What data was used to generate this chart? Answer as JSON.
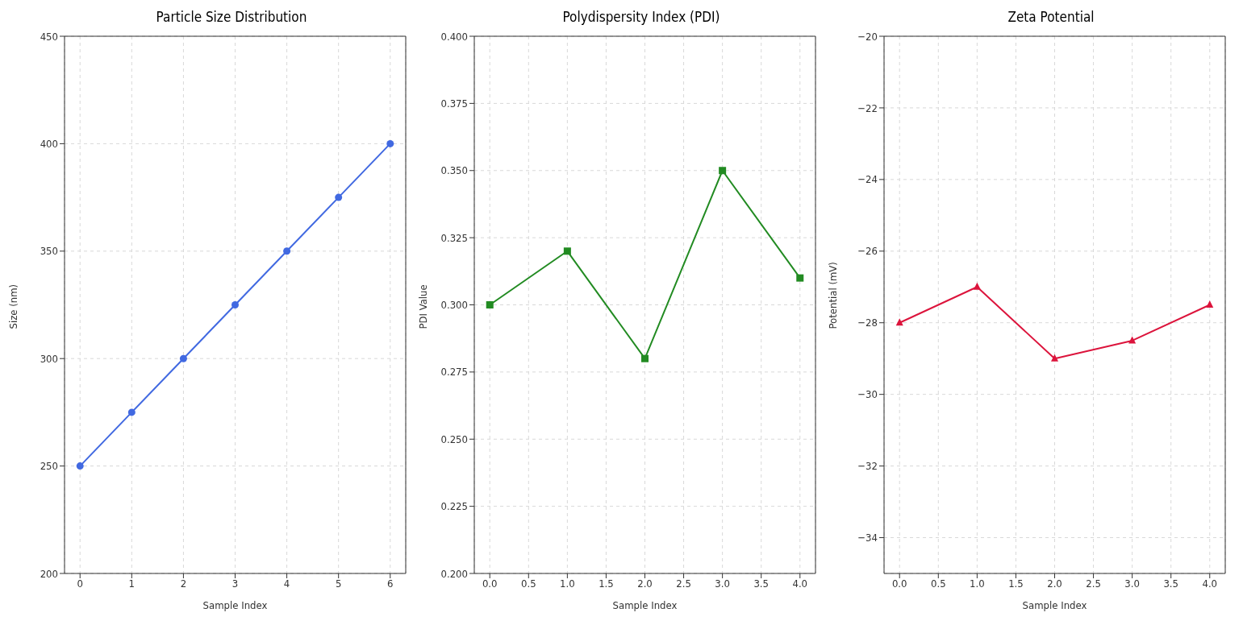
{
  "chart_data": [
    {
      "type": "line",
      "title": "Particle Size Distribution",
      "xlabel": "Sample Index",
      "ylabel": "Size (nm)",
      "x": [
        0,
        1,
        2,
        3,
        4,
        5,
        6
      ],
      "values": [
        250,
        275,
        300,
        325,
        350,
        375,
        400
      ],
      "color": "#4169e1",
      "marker": "circle",
      "xlim": [
        -0.3,
        6.3
      ],
      "xticks": [
        0,
        1,
        2,
        3,
        4,
        5,
        6
      ],
      "ylim": [
        200,
        450
      ],
      "yticks": [
        200,
        250,
        300,
        350,
        400,
        450
      ],
      "grid": true
    },
    {
      "type": "line",
      "title": "Polydispersity Index (PDI)",
      "xlabel": "Sample Index",
      "ylabel": "PDI Value",
      "x": [
        0,
        1,
        2,
        3,
        4
      ],
      "values": [
        0.3,
        0.32,
        0.28,
        0.35,
        0.31
      ],
      "color": "#228b22",
      "marker": "square",
      "xlim": [
        -0.2,
        4.2
      ],
      "xticks": [
        {
          "value": 0,
          "label": "0.0"
        },
        {
          "value": 0.5,
          "label": "0.5"
        },
        {
          "value": 1,
          "label": "1.0"
        },
        {
          "value": 1.5,
          "label": "1.5"
        },
        {
          "value": 2,
          "label": "2.0"
        },
        {
          "value": 2.5,
          "label": "2.5"
        },
        {
          "value": 3,
          "label": "3.0"
        },
        {
          "value": 3.5,
          "label": "3.5"
        },
        {
          "value": 4,
          "label": "4.0"
        }
      ],
      "ylim": [
        0.2,
        0.4
      ],
      "yticks": [
        {
          "value": 0.2,
          "label": "0.200"
        },
        {
          "value": 0.225,
          "label": "0.225"
        },
        {
          "value": 0.25,
          "label": "0.250"
        },
        {
          "value": 0.275,
          "label": "0.275"
        },
        {
          "value": 0.3,
          "label": "0.300"
        },
        {
          "value": 0.325,
          "label": "0.325"
        },
        {
          "value": 0.35,
          "label": "0.350"
        },
        {
          "value": 0.375,
          "label": "0.375"
        },
        {
          "value": 0.4,
          "label": "0.400"
        }
      ],
      "grid": true
    },
    {
      "type": "line",
      "title": "Zeta Potential",
      "xlabel": "Sample Index",
      "ylabel": "Potential (mV)",
      "x": [
        0,
        1,
        2,
        3,
        4
      ],
      "values": [
        -28,
        -27,
        -29,
        -28.5,
        -27.5
      ],
      "color": "#dc143c",
      "marker": "triangle",
      "xlim": [
        -0.2,
        4.2
      ],
      "xticks": [
        {
          "value": 0,
          "label": "0.0"
        },
        {
          "value": 0.5,
          "label": "0.5"
        },
        {
          "value": 1,
          "label": "1.0"
        },
        {
          "value": 1.5,
          "label": "1.5"
        },
        {
          "value": 2,
          "label": "2.0"
        },
        {
          "value": 2.5,
          "label": "2.5"
        },
        {
          "value": 3,
          "label": "3.0"
        },
        {
          "value": 3.5,
          "label": "3.5"
        },
        {
          "value": 4,
          "label": "4.0"
        }
      ],
      "ylim": [
        -35,
        -20
      ],
      "yticks": [
        {
          "value": -34,
          "label": "−34"
        },
        {
          "value": -32,
          "label": "−32"
        },
        {
          "value": -30,
          "label": "−30"
        },
        {
          "value": -28,
          "label": "−28"
        },
        {
          "value": -26,
          "label": "−26"
        },
        {
          "value": -24,
          "label": "−24"
        },
        {
          "value": -22,
          "label": "−22"
        },
        {
          "value": -20,
          "label": "−20"
        }
      ],
      "grid": true
    }
  ]
}
